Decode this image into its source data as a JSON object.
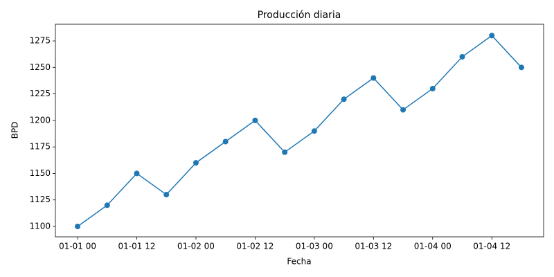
{
  "chart_data": {
    "type": "line",
    "title": "Producción diaria",
    "x_label": "Fecha",
    "y_label": "BPD",
    "x": [
      "01-01 00",
      "01-01 06",
      "01-01 12",
      "01-01 18",
      "01-02 00",
      "01-02 06",
      "01-02 12",
      "01-02 18",
      "01-03 00",
      "01-03 06",
      "01-03 12",
      "01-03 18",
      "01-04 00",
      "01-04 06",
      "01-04 12",
      "01-04 18"
    ],
    "series": [
      {
        "name": "BPD",
        "color": "#1f77b4",
        "values": [
          1100,
          1120,
          1150,
          1130,
          1160,
          1180,
          1200,
          1170,
          1190,
          1220,
          1240,
          1210,
          1230,
          1260,
          1280,
          1250
        ]
      }
    ],
    "xticks": [
      "01-01 00",
      "01-01 12",
      "01-02 00",
      "01-02 12",
      "01-03 00",
      "01-03 12",
      "01-04 00",
      "01-04 12"
    ],
    "ylim": [
      1090.2,
      1290.7
    ],
    "yticks": [
      1100,
      1125,
      1150,
      1175,
      1200,
      1225,
      1250,
      1275
    ],
    "grid": false,
    "markers": true
  }
}
